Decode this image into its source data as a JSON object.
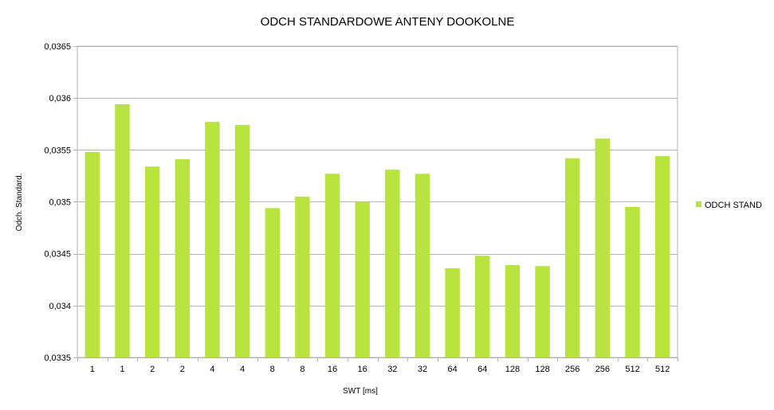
{
  "chart_data": {
    "type": "bar",
    "title": "ODCH STANDARDOWE ANTENY DOOKOLNE",
    "xlabel": "SWT [ms]",
    "ylabel": "Odch. Standard.",
    "categories": [
      "1",
      "1",
      "2",
      "2",
      "4",
      "4",
      "8",
      "8",
      "16",
      "16",
      "32",
      "32",
      "64",
      "64",
      "128",
      "128",
      "256",
      "256",
      "512",
      "512"
    ],
    "series": [
      {
        "name": "ODCH STAND",
        "color": "#b9e33e",
        "values": [
          0.03548,
          0.03594,
          0.03534,
          0.03541,
          0.03577,
          0.03574,
          0.03494,
          0.03505,
          0.03527,
          0.035,
          0.03531,
          0.03527,
          0.03436,
          0.03448,
          0.03439,
          0.03438,
          0.03542,
          0.03561,
          0.03495,
          0.03544
        ]
      }
    ],
    "ylim": [
      0.0335,
      0.0365
    ],
    "yticks": [
      0.0335,
      0.034,
      0.0345,
      0.035,
      0.0355,
      0.036,
      0.0365
    ],
    "ytick_labels": [
      "0,0335",
      "0,034",
      "0,0345",
      "0,035",
      "0,0355",
      "0,036",
      "0,0365"
    ],
    "grid": true,
    "legend_position": "right"
  }
}
